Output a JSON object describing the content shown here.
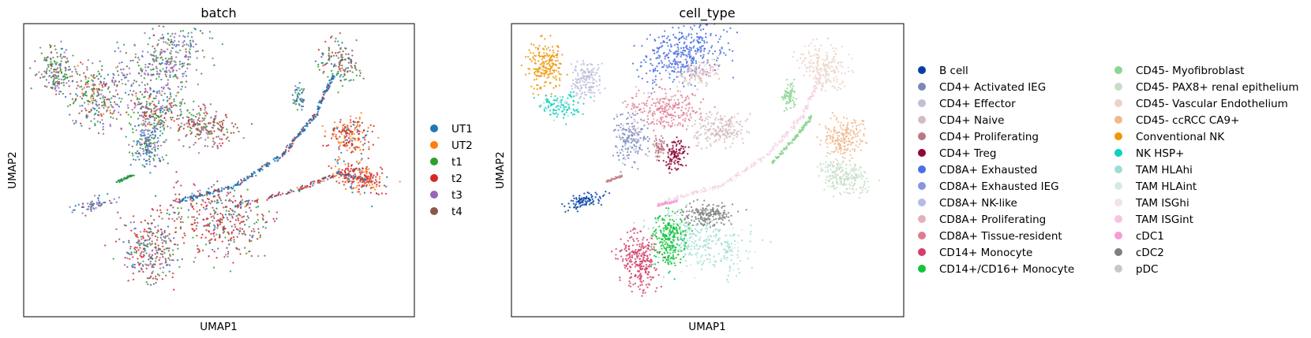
{
  "chart_data": [
    {
      "type": "scatter",
      "title": "batch",
      "xlabel": "UMAP1",
      "ylabel": "UMAP2",
      "grid": false,
      "legend_placement": "right",
      "series": [
        {
          "name": "UT1",
          "color": "#1f77b4"
        },
        {
          "name": "UT2",
          "color": "#ff7f0e"
        },
        {
          "name": "t1",
          "color": "#2ca02c"
        },
        {
          "name": "t2",
          "color": "#d62728"
        },
        {
          "name": "t3",
          "color": "#9467bd"
        },
        {
          "name": "t4",
          "color": "#8c564b"
        }
      ]
    },
    {
      "type": "scatter",
      "title": "cell_type",
      "xlabel": "UMAP1",
      "ylabel": "UMAP2",
      "grid": false,
      "legend_placement": "right, two columns",
      "series": [
        {
          "name": "B cell",
          "color": "#023fa5"
        },
        {
          "name": "CD4+ Activated IEG",
          "color": "#7d87b9"
        },
        {
          "name": "CD4+ Effector",
          "color": "#bec1d4"
        },
        {
          "name": "CD4+ Naive",
          "color": "#d6bcc0"
        },
        {
          "name": "CD4+ Proliferating",
          "color": "#bb7784"
        },
        {
          "name": "CD4+ Treg",
          "color": "#8e063b"
        },
        {
          "name": "CD8A+ Exhausted",
          "color": "#4a6fe3"
        },
        {
          "name": "CD8A+ Exhausted IEG",
          "color": "#8595e1"
        },
        {
          "name": "CD8A+ NK-like",
          "color": "#b5bbe3"
        },
        {
          "name": "CD8A+ Proliferating",
          "color": "#e6afb9"
        },
        {
          "name": "CD8A+ Tissue-resident",
          "color": "#e07b91"
        },
        {
          "name": "CD14+ Monocyte",
          "color": "#d33f6a"
        },
        {
          "name": "CD14+/CD16+ Monocyte",
          "color": "#11c638"
        },
        {
          "name": "CD45- Myofibroblast",
          "color": "#8dd593"
        },
        {
          "name": "CD45- PAX8+ renal epithelium",
          "color": "#c6dec7"
        },
        {
          "name": "CD45- Vascular Endothelium",
          "color": "#ead3c6"
        },
        {
          "name": "CD45- ccRCC CA9+",
          "color": "#f0b98d"
        },
        {
          "name": "Conventional NK",
          "color": "#ef9708"
        },
        {
          "name": "NK HSP+",
          "color": "#0fcfc0"
        },
        {
          "name": "TAM HLAhi",
          "color": "#9cded6"
        },
        {
          "name": "TAM HLAint",
          "color": "#d5eae7"
        },
        {
          "name": "TAM ISGhi",
          "color": "#f3e1eb"
        },
        {
          "name": "TAM ISGint",
          "color": "#f6c4e1"
        },
        {
          "name": "cDC1",
          "color": "#f79cd4"
        },
        {
          "name": "cDC2",
          "color": "#7f7f7f"
        },
        {
          "name": "pDC",
          "color": "#c7c7c7"
        }
      ]
    }
  ]
}
